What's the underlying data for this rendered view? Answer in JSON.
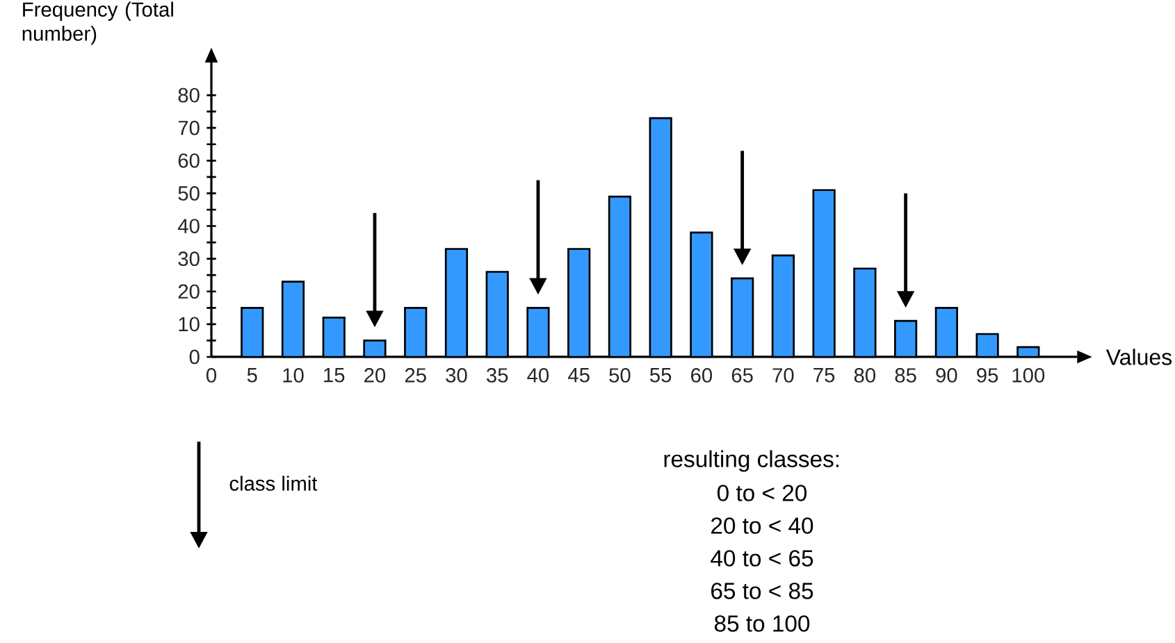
{
  "chart_data": {
    "type": "bar",
    "xlabel": "Values",
    "ylabel": "Frequency (Total number)",
    "x": [
      5,
      10,
      15,
      20,
      25,
      30,
      35,
      40,
      45,
      50,
      55,
      60,
      65,
      70,
      75,
      80,
      85,
      90,
      95,
      100
    ],
    "values": [
      15,
      23,
      12,
      5,
      15,
      33,
      26,
      15,
      33,
      49,
      73,
      38,
      24,
      31,
      51,
      27,
      11,
      15,
      7,
      3
    ],
    "color": "#3399ff",
    "xlim": [
      0,
      106
    ],
    "ylim": [
      0,
      90
    ],
    "xticks": [
      0,
      5,
      10,
      15,
      20,
      25,
      30,
      35,
      40,
      45,
      50,
      55,
      60,
      65,
      70,
      75,
      80,
      85,
      90,
      95,
      100
    ],
    "yticks": [
      0,
      {
        "value": 5,
        "label": null
      },
      10,
      {
        "value": 15,
        "label": null
      },
      20,
      {
        "value": 25,
        "label": null
      },
      30,
      {
        "value": 35,
        "label": null
      },
      40,
      {
        "value": 45,
        "label": null
      },
      50,
      {
        "value": 55,
        "label": null
      },
      60,
      {
        "value": 65,
        "label": null
      },
      70,
      {
        "value": 75,
        "label": null
      },
      80
    ],
    "ref_lines": [
      {
        "axis": "x",
        "value": 20
      },
      {
        "axis": "x",
        "value": 40
      },
      {
        "axis": "x",
        "value": 65
      },
      {
        "axis": "x",
        "value": 85
      }
    ],
    "annotations": [
      "class limit",
      "resulting classes:",
      "0 to < 20",
      "20 to < 40",
      "40 to < 65",
      "65 to < 85",
      "85 to 100"
    ]
  }
}
